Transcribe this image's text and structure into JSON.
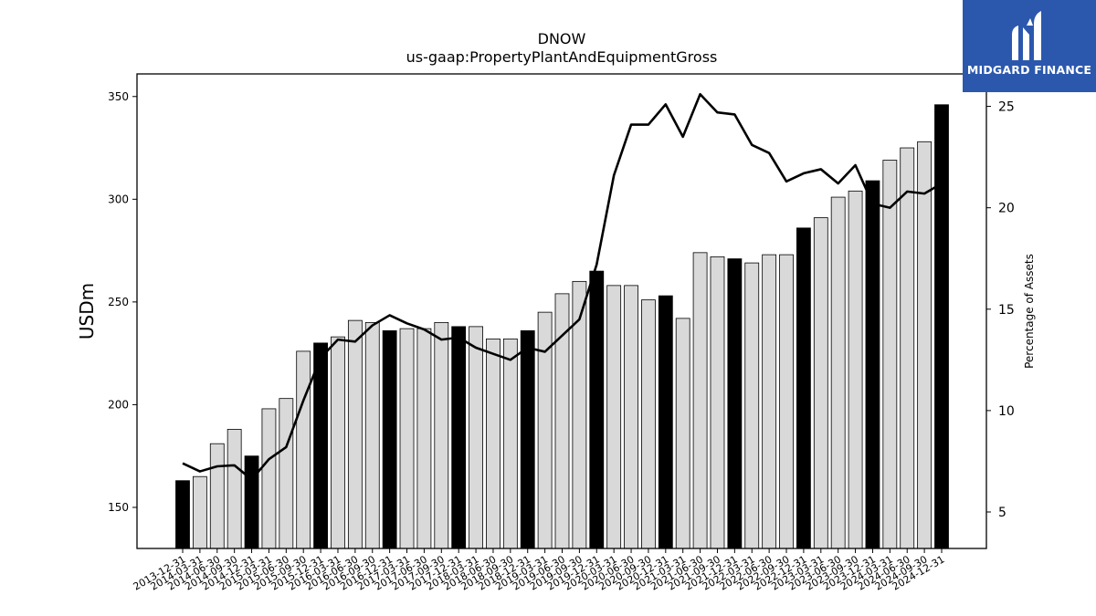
{
  "chart_data": {
    "type": "bar",
    "title": "DNOW",
    "subtitle": "us-gaap:PropertyPlantAndEquipmentGross",
    "ylabel": "USDm",
    "y2label": "Percentage of Assets",
    "ylim": [
      130,
      361
    ],
    "y2lim": [
      3.2,
      26.6
    ],
    "yticks": [
      150,
      200,
      250,
      300,
      350
    ],
    "y2ticks": [
      5,
      10,
      15,
      20,
      25
    ],
    "categories": [
      "2013-12-31",
      "2014-03-31",
      "2014-06-30",
      "2014-09-30",
      "2014-12-31",
      "2015-03-31",
      "2015-06-30",
      "2015-09-30",
      "2015-12-31",
      "2016-03-31",
      "2016-06-30",
      "2016-09-30",
      "2016-12-31",
      "2017-03-31",
      "2017-06-30",
      "2017-09-30",
      "2017-12-31",
      "2018-03-31",
      "2018-06-30",
      "2018-09-30",
      "2018-12-31",
      "2019-03-31",
      "2019-06-30",
      "2019-09-30",
      "2019-12-31",
      "2020-03-31",
      "2020-06-30",
      "2020-09-30",
      "2020-12-31",
      "2021-03-31",
      "2021-06-30",
      "2021-09-30",
      "2021-12-31",
      "2022-03-31",
      "2022-06-30",
      "2022-09-30",
      "2022-12-31",
      "2023-03-31",
      "2023-06-30",
      "2023-09-30",
      "2023-12-31",
      "2024-03-31",
      "2024-06-30",
      "2024-09-30",
      "2024-12-31"
    ],
    "series": [
      {
        "kind": "bar",
        "axis": "left",
        "values": [
          163,
          165,
          181,
          188,
          175,
          198,
          203,
          226,
          230,
          233,
          241,
          240,
          236,
          237,
          237,
          240,
          238,
          238,
          232,
          232,
          236,
          245,
          254,
          260,
          265,
          258,
          258,
          251,
          253,
          242,
          274,
          272,
          271,
          269,
          273,
          273,
          286,
          291,
          301,
          304,
          309,
          319,
          325,
          328,
          346
        ],
        "highlight_color": "#000000",
        "fill_color": "#d9d9d9"
      },
      {
        "kind": "line",
        "axis": "right",
        "color": "#000000",
        "values": [
          7.4,
          7.0,
          7.25,
          7.3,
          6.6,
          7.6,
          8.2,
          10.5,
          12.6,
          13.5,
          13.4,
          14.2,
          14.7,
          14.3,
          14.0,
          13.5,
          13.6,
          13.1,
          12.8,
          12.5,
          13.1,
          12.9,
          13.7,
          14.5,
          17.2,
          21.6,
          24.1,
          24.1,
          25.1,
          23.5,
          25.6,
          24.7,
          24.6,
          23.1,
          22.7,
          21.3,
          21.7,
          21.9,
          21.2,
          22.1,
          20.2,
          20.0,
          20.8,
          20.7,
          21.2
        ]
      }
    ],
    "grid": false,
    "legend": "none"
  },
  "logo": {
    "text": "MIDGARD FINANCE",
    "icon": "midgard-logo-icon",
    "background": "#2b58ad"
  }
}
